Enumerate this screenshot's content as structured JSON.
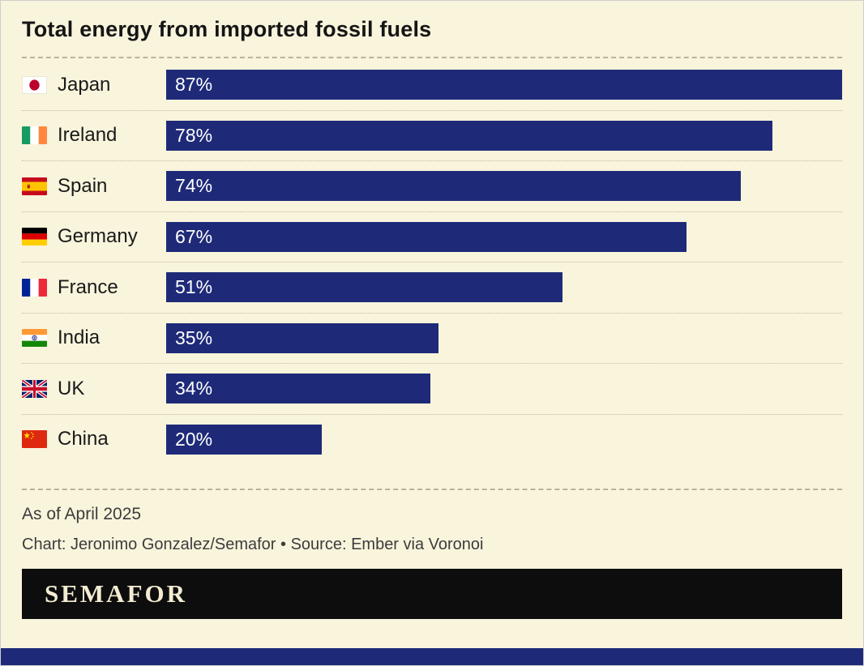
{
  "header": {
    "title": "Total energy from imported fossil fuels"
  },
  "chart_data": {
    "type": "bar",
    "orientation": "horizontal",
    "title": "Total energy from imported fossil fuels",
    "categories": [
      "Japan",
      "Ireland",
      "Spain",
      "Germany",
      "France",
      "India",
      "UK",
      "China"
    ],
    "values": [
      87,
      78,
      74,
      67,
      51,
      35,
      34,
      20
    ],
    "value_suffix": "%",
    "xlim": [
      0,
      87
    ],
    "grid": false,
    "legend": "none",
    "flag_icons": [
      "japan-flag-icon",
      "ireland-flag-icon",
      "spain-flag-icon",
      "germany-flag-icon",
      "france-flag-icon",
      "india-flag-icon",
      "uk-flag-icon",
      "china-flag-icon"
    ],
    "note": "As of April 2025",
    "credit": "Chart: Jeronimo Gonzalez/Semafor • Source: Ember via Voronoi"
  },
  "footer": {
    "note": "As of April 2025",
    "credit": "Chart: Jeronimo Gonzalez/Semafor • Source: Ember via Voronoi"
  },
  "branding": {
    "logo_text": "SEMAFOR"
  },
  "colors": {
    "background": "#f9f4dc",
    "bar": "#1e2a78",
    "bar_value_text": "#ffffff",
    "bottom_strip": "#1e2a78",
    "logo_bg": "#0d0d0d",
    "logo_text": "#f3ecd2"
  }
}
